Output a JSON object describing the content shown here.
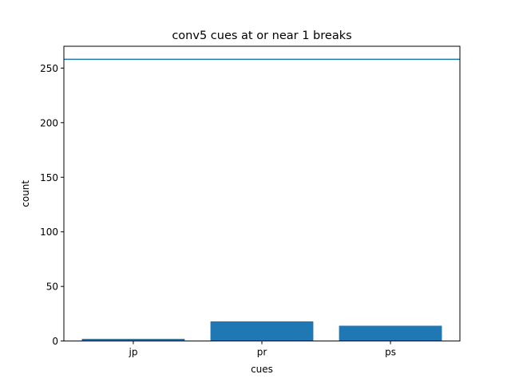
{
  "chart_data": {
    "type": "bar",
    "title": "conv5 cues at or near 1 breaks",
    "xlabel": "cues",
    "ylabel": "count",
    "categories": [
      "jp",
      "pr",
      "ps"
    ],
    "values": [
      2,
      18,
      14
    ],
    "ylim": [
      0,
      270
    ],
    "yticks": [
      0,
      50,
      100,
      150,
      200,
      250
    ],
    "reference_line": 258,
    "bar_color": "#1f77b4",
    "line_color": "#1f77b4",
    "grid": false,
    "legend": "none"
  }
}
